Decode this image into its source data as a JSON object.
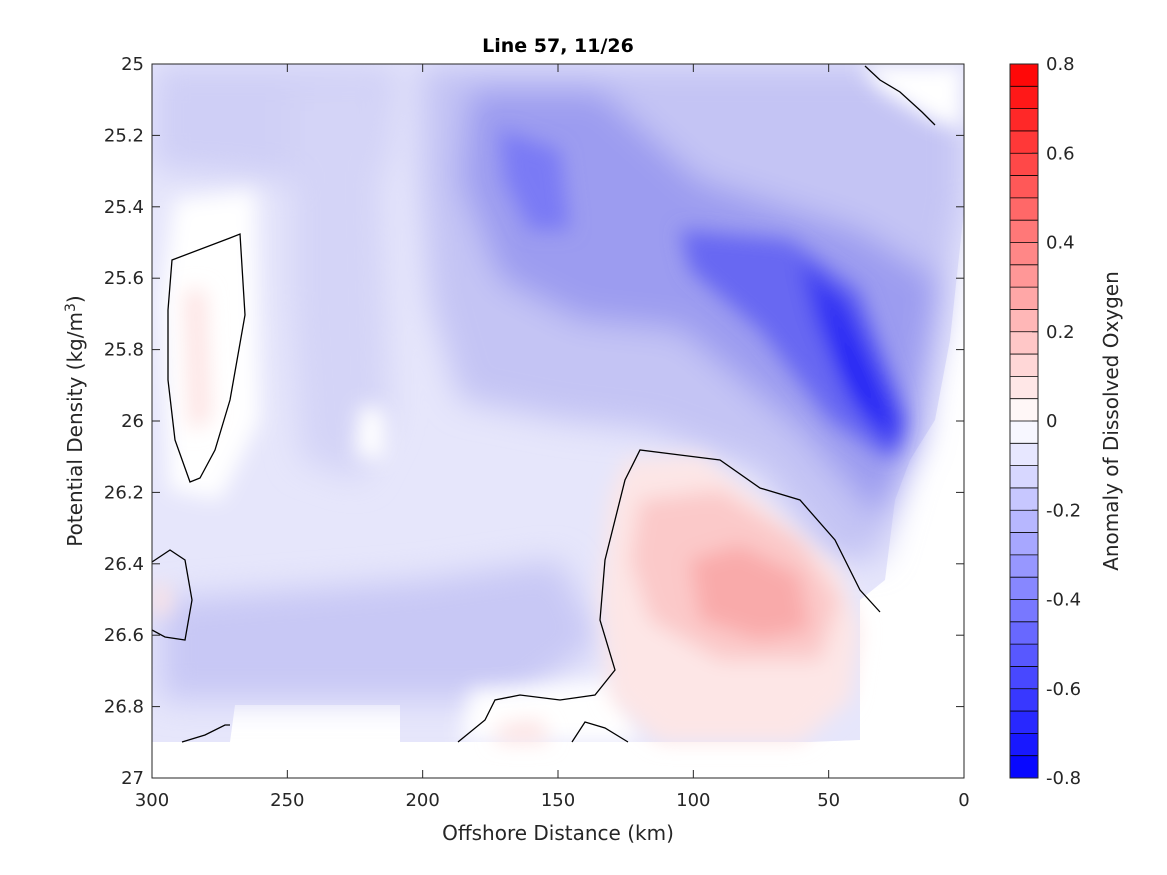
{
  "chart_data": {
    "type": "contour",
    "title": "Line 57, 11/26",
    "xlabel": "Offshore Distance (km)",
    "ylabel_main": "Potential Density (kg/m",
    "ylabel_sup": "3",
    "ylabel_close": ")",
    "colorbar_label": "Anomaly of Dissolved Oxygen",
    "xlim": [
      300,
      0
    ],
    "ylim": [
      25,
      27
    ],
    "x_reversed": true,
    "y_reversed": true,
    "x_ticks": [
      "300",
      "250",
      "200",
      "150",
      "100",
      "50",
      "0"
    ],
    "x_tick_values": [
      300,
      250,
      200,
      150,
      100,
      50,
      0
    ],
    "y_ticks": [
      "25",
      "25.2",
      "25.4",
      "25.6",
      "25.8",
      "26",
      "26.2",
      "26.4",
      "26.6",
      "26.8",
      "27"
    ],
    "y_tick_values": [
      25,
      25.2,
      25.4,
      25.6,
      25.8,
      26,
      26.2,
      26.4,
      26.6,
      26.8,
      27
    ],
    "colorbar_ticks": [
      "0.8",
      "0.6",
      "0.4",
      "0.2",
      "0",
      "-0.2",
      "-0.4",
      "-0.6",
      "-0.8"
    ],
    "colorbar_tick_values": [
      0.8,
      0.6,
      0.4,
      0.2,
      0,
      -0.2,
      -0.4,
      -0.6,
      -0.8
    ],
    "clim": [
      -0.8,
      0.8
    ],
    "colormap": {
      "negative": "#0000ff",
      "zero": "#ffffff",
      "positive": "#ff0000",
      "levels": 32
    },
    "zero_contour_color": "#000000",
    "data_extent_x": [
      300,
      0
    ],
    "data_extent_y": [
      25,
      26.9
    ],
    "notable_features": [
      {
        "x": 40,
        "y": 25.95,
        "value": -0.7
      },
      {
        "x": 160,
        "y": 25.35,
        "value": -0.4
      },
      {
        "x": 85,
        "y": 26.5,
        "value": 0.3
      },
      {
        "x": 280,
        "y": 25.8,
        "value": 0.05
      },
      {
        "x": 270,
        "y": 25.05,
        "value": -0.25
      },
      {
        "x": 230,
        "y": 25.15,
        "value": -0.25
      }
    ]
  }
}
